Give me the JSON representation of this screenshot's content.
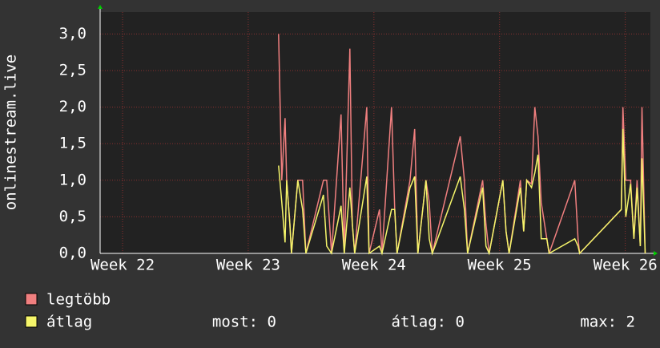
{
  "chart_data": {
    "type": "line",
    "y_label": "onlinestream.live",
    "x": [
      8.69,
      8.87,
      9.05,
      9.14,
      9.32,
      9.41,
      9.76,
      10.03,
      10.21,
      11.19,
      11.37,
      11.64,
      12.17,
      12.35,
      12.66,
      12.8,
      12.93,
      13.6,
      13.73,
      14.31,
      14.45,
      14.98,
      15.16,
      15.29,
      16.01,
      16.27,
      16.45,
      16.9,
      17.08,
      17.25,
      18.81,
      19.04,
      19.22,
      20.06,
      20.24,
      20.42,
      21.18,
      21.36,
      21.53,
      22.16,
      22.34,
      22.51,
      22.78,
      22.96,
      23.14,
      23.32,
      23.63,
      23.76,
      25.19,
      25.37,
      25.46,
      27.78,
      27.87,
      28.03,
      28.3,
      28.48,
      28.66,
      28.84,
      28.93,
      29.11
    ],
    "series": [
      {
        "name": "legtöbb",
        "color": "#f07f7f",
        "values": [
          3.0,
          1.0,
          1.85,
          1.0,
          0.4,
          0,
          1.0,
          1.0,
          0,
          1.0,
          1.0,
          0,
          1.9,
          0,
          2.8,
          0.4,
          0,
          2.0,
          0,
          0.6,
          0,
          2.0,
          0.6,
          0,
          1.0,
          1.7,
          0,
          1.0,
          0.7,
          0,
          1.6,
          1.0,
          0,
          1.0,
          0.4,
          0,
          1.0,
          0.3,
          0,
          1.0,
          0.3,
          1.0,
          0.95,
          2.0,
          1.6,
          0.7,
          0.2,
          0,
          1.0,
          0.2,
          0,
          0.6,
          2.0,
          1.0,
          1.0,
          0.2,
          1.0,
          0.1,
          2.0,
          0
        ]
      },
      {
        "name": "átlag",
        "color": "#f5f56a",
        "values": [
          1.2,
          0.7,
          0.15,
          1.0,
          0.4,
          0,
          1.0,
          0.6,
          0,
          0.8,
          0.1,
          0,
          0.65,
          0,
          0.9,
          0.4,
          0,
          1.05,
          0,
          0.1,
          0,
          0.6,
          0.6,
          0,
          0.9,
          1.05,
          0,
          1.0,
          0.2,
          0,
          1.05,
          0.6,
          0,
          0.9,
          0.1,
          0,
          1.0,
          0.3,
          0,
          0.9,
          0.3,
          1.0,
          0.9,
          1.1,
          1.35,
          0.2,
          0.2,
          0,
          0.2,
          0.1,
          0,
          0.6,
          1.7,
          0.5,
          0.95,
          0.2,
          0.9,
          0.1,
          1.3,
          0
        ]
      }
    ],
    "xlim": [
      -1.25,
      29.4
    ],
    "xticks": [
      {
        "value": 0,
        "label": "Week 22"
      },
      {
        "value": 7,
        "label": "Week 23"
      },
      {
        "value": 14,
        "label": "Week 24"
      },
      {
        "value": 21,
        "label": "Week 25"
      },
      {
        "value": 28,
        "label": "Week 26"
      }
    ],
    "ylim": [
      0,
      3.3
    ],
    "yticks": [
      {
        "value": 0,
        "label": "0,0"
      },
      {
        "value": 0.5,
        "label": "0,5"
      },
      {
        "value": 1,
        "label": "1,0"
      },
      {
        "value": 1.5,
        "label": "1,5"
      },
      {
        "value": 2,
        "label": "2,0"
      },
      {
        "value": 2.5,
        "label": "2,5"
      },
      {
        "value": 3,
        "label": "3,0"
      }
    ],
    "grid": true,
    "stats": [
      "most: 0",
      "átlag: 0",
      "max: 2"
    ]
  }
}
